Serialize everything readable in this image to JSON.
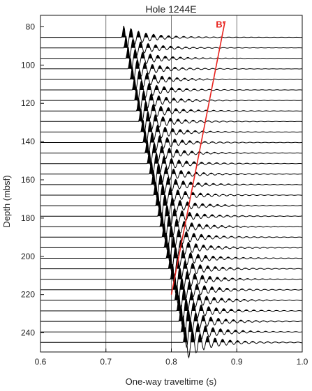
{
  "chart_data": {
    "type": "line",
    "title": "Hole 1244E",
    "xlabel": "One-way traveltime (s)",
    "ylabel": "Depth (mbsf)",
    "xlim": [
      0.6,
      1.0
    ],
    "ylim": [
      74,
      250
    ],
    "x_ticks": [
      "0.6",
      "0.7",
      "0.8",
      "0.9",
      "1.0"
    ],
    "x_tick_values": [
      0.6,
      0.7,
      0.8,
      0.9,
      1.0
    ],
    "y_ticks": [
      "80",
      "100",
      "120",
      "140",
      "160",
      "180",
      "200",
      "220",
      "240"
    ],
    "y_tick_values": [
      80,
      100,
      120,
      140,
      160,
      180,
      200,
      220,
      240
    ],
    "grid_x": true,
    "trace_depth_first": 85.5,
    "trace_depth_step": 5.5,
    "trace_count": 30,
    "first_arrival_start": [
      0.728,
      85.5
    ],
    "first_arrival_end": [
      0.822,
      245
    ],
    "wavelet_period_s": 0.0115,
    "series": [
      {
        "name": "B'",
        "color": "#e8231e",
        "points": [
          [
            0.8,
            220
          ],
          [
            0.882,
            77
          ]
        ]
      }
    ],
    "annotations": [
      {
        "text": "B'",
        "x": 0.868,
        "y": 79,
        "color": "#e8231e"
      }
    ]
  }
}
